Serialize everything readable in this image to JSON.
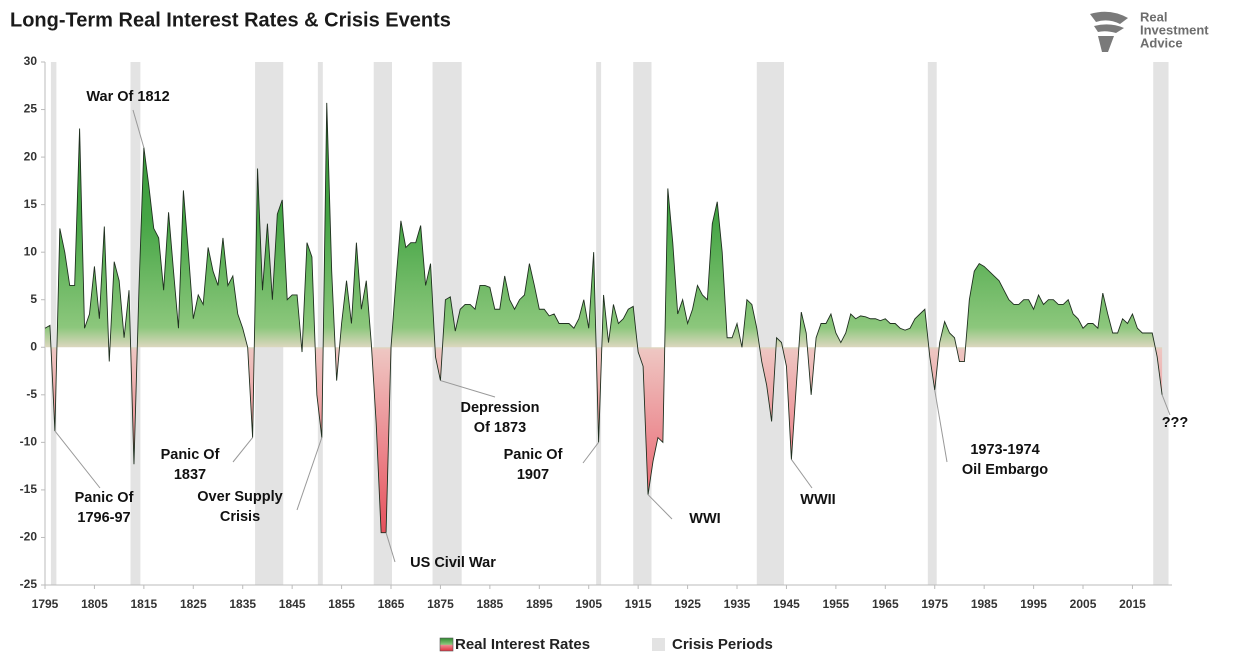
{
  "chart_data": {
    "type": "area",
    "title": "Long-Term Real Interest Rates & Crisis Events",
    "logo": [
      "Real",
      "Investment",
      "Advice"
    ],
    "x": [
      1795,
      1796,
      1797,
      1798,
      1799,
      1800,
      1801,
      1802,
      1803,
      1804,
      1805,
      1806,
      1807,
      1808,
      1809,
      1810,
      1811,
      1812,
      1813,
      1814,
      1815,
      1816,
      1817,
      1818,
      1819,
      1820,
      1821,
      1822,
      1823,
      1824,
      1825,
      1826,
      1827,
      1828,
      1829,
      1830,
      1831,
      1832,
      1833,
      1834,
      1835,
      1836,
      1837,
      1838,
      1839,
      1840,
      1841,
      1842,
      1843,
      1844,
      1845,
      1846,
      1847,
      1848,
      1849,
      1850,
      1851,
      1852,
      1853,
      1854,
      1855,
      1856,
      1857,
      1858,
      1859,
      1860,
      1861,
      1862,
      1863,
      1864,
      1865,
      1866,
      1867,
      1868,
      1869,
      1870,
      1871,
      1872,
      1873,
      1874,
      1875,
      1876,
      1877,
      1878,
      1879,
      1880,
      1881,
      1882,
      1883,
      1884,
      1885,
      1886,
      1887,
      1888,
      1889,
      1890,
      1891,
      1892,
      1893,
      1894,
      1895,
      1896,
      1897,
      1898,
      1899,
      1900,
      1901,
      1902,
      1903,
      1904,
      1905,
      1906,
      1907,
      1908,
      1909,
      1910,
      1911,
      1912,
      1913,
      1914,
      1915,
      1916,
      1917,
      1918,
      1919,
      1920,
      1921,
      1922,
      1923,
      1924,
      1925,
      1926,
      1927,
      1928,
      1929,
      1930,
      1931,
      1932,
      1933,
      1934,
      1935,
      1936,
      1937,
      1938,
      1939,
      1940,
      1941,
      1942,
      1943,
      1944,
      1945,
      1946,
      1947,
      1948,
      1949,
      1950,
      1951,
      1952,
      1953,
      1954,
      1955,
      1956,
      1957,
      1958,
      1959,
      1960,
      1961,
      1962,
      1963,
      1964,
      1965,
      1966,
      1967,
      1968,
      1969,
      1970,
      1971,
      1972,
      1973,
      1974,
      1975,
      1976,
      1977,
      1978,
      1979,
      1980,
      1981,
      1982,
      1983,
      1984,
      1985,
      1986,
      1987,
      1988,
      1989,
      1990,
      1991,
      1992,
      1993,
      1994,
      1995,
      1996,
      1997,
      1998,
      1999,
      2000,
      2001,
      2002,
      2003,
      2004,
      2005,
      2006,
      2007,
      2008,
      2009,
      2010,
      2011,
      2012,
      2013,
      2014,
      2015,
      2016,
      2017,
      2018,
      2019,
      2020,
      2021
    ],
    "series": [
      {
        "name": "Real Interest Rates",
        "color": "#2f8a2f",
        "negative_color": "#e2303e",
        "values": [
          2,
          2.3,
          -8.8,
          12.5,
          10,
          6.5,
          6.5,
          23,
          2,
          3.5,
          8.5,
          3,
          12.7,
          -1.5,
          9,
          7,
          1,
          6,
          -12.3,
          6,
          21,
          17,
          12.5,
          11.5,
          6,
          14.2,
          8,
          2,
          16.5,
          10,
          3,
          5.5,
          4.5,
          10.5,
          8,
          6.5,
          11.5,
          6.5,
          7.5,
          3.5,
          2,
          0,
          -9.5,
          18.8,
          6,
          13,
          5,
          14,
          15.5,
          5,
          5.5,
          5.5,
          -0.5,
          11,
          9.5,
          -5,
          -9.5,
          25.7,
          8,
          -3.5,
          2.5,
          7,
          2.5,
          11,
          4,
          7,
          0.5,
          -8,
          -19.5,
          -19.5,
          0,
          7,
          13.3,
          10.5,
          11,
          11,
          12.8,
          6.5,
          8.8,
          -1,
          -3.5,
          5,
          5.3,
          1.7,
          4,
          4.5,
          4.5,
          4,
          6.5,
          6.5,
          6.3,
          4,
          4,
          7.5,
          5,
          4,
          5,
          5.5,
          8.8,
          6.5,
          4,
          4,
          3.3,
          3.5,
          2.5,
          2.5,
          2.5,
          2,
          3,
          5,
          2,
          10,
          -10,
          5.5,
          0.5,
          4.5,
          2.5,
          3,
          4,
          4.3,
          -0.5,
          -2,
          -15.5,
          -12,
          -9.5,
          -10,
          16.7,
          11,
          3.5,
          5,
          2.5,
          4,
          6.5,
          5.5,
          5,
          13,
          15.3,
          10,
          1,
          1,
          2.5,
          0,
          5,
          4.5,
          2,
          -1.5,
          -4,
          -7.8,
          1,
          0.5,
          -2,
          -11.8,
          -4,
          3.7,
          1.5,
          -5,
          1,
          2.5,
          2.5,
          3.5,
          1.5,
          0.5,
          1.5,
          3.5,
          3,
          3.3,
          3.2,
          3,
          3,
          2.8,
          3,
          2.5,
          2.5,
          2,
          1.8,
          2,
          3,
          3.5,
          4,
          -1,
          -4.5,
          0.5,
          2.7,
          1.5,
          1,
          -1.5,
          -1.5,
          5,
          8,
          8.8,
          8.5,
          8,
          7.5,
          7,
          6,
          5,
          4.5,
          4.5,
          5,
          5,
          4,
          5.5,
          4.5,
          5,
          5,
          4.5,
          4.5,
          5,
          3.5,
          3,
          2,
          2.5,
          2.5,
          2,
          5.7,
          3.5,
          1.5,
          1.5,
          3,
          2.5,
          3.5,
          2,
          1.5,
          1.5,
          1.5,
          -1,
          -5
        ]
      }
    ],
    "crisis": {
      "name": "Crisis Periods",
      "color": "#e3e3e3",
      "periods": [
        [
          1796.2,
          1797.3
        ],
        [
          1812.3,
          1814.3
        ],
        [
          1837.5,
          1843.2
        ],
        [
          1850.2,
          1851.2
        ],
        [
          1861.5,
          1865.2
        ],
        [
          1873.4,
          1879.3
        ],
        [
          1906.5,
          1907.5
        ],
        [
          1914,
          1917.7
        ],
        [
          1939,
          1944.5
        ],
        [
          1973.6,
          1975.4
        ],
        [
          2019.2,
          2022.3
        ]
      ]
    },
    "annotations": [
      {
        "lines": [
          "War Of 1812"
        ],
        "x": 1815
      },
      {
        "lines": [
          "Panic Of",
          "1796-97"
        ],
        "x": 1797
      },
      {
        "lines": [
          "Panic Of",
          "1837"
        ],
        "x": 1837
      },
      {
        "lines": [
          "Over Supply",
          "Crisis"
        ],
        "x": 1851
      },
      {
        "lines": [
          "US Civil War"
        ],
        "x": 1864
      },
      {
        "lines": [
          "Depression",
          "Of 1873"
        ],
        "x": 1875
      },
      {
        "lines": [
          "Panic Of",
          "1907"
        ],
        "x": 1907
      },
      {
        "lines": [
          "WWI"
        ],
        "x": 1917
      },
      {
        "lines": [
          "WWII"
        ],
        "x": 1946
      },
      {
        "lines": [
          "1973-1974",
          "Oil Embargo"
        ],
        "x": 1975
      },
      {
        "lines": [
          "???"
        ],
        "x": 2021
      }
    ],
    "xlim": [
      1795,
      2023
    ],
    "xticks": [
      1795,
      1805,
      1815,
      1825,
      1835,
      1845,
      1855,
      1865,
      1875,
      1885,
      1895,
      1905,
      1915,
      1925,
      1935,
      1945,
      1955,
      1965,
      1975,
      1985,
      1995,
      2005,
      2015
    ],
    "ylim": [
      -25,
      30
    ],
    "yticks": [
      30,
      25,
      20,
      15,
      10,
      5,
      0,
      -5,
      -10,
      -15,
      -20,
      -25
    ],
    "grid": false,
    "legend": "bottom"
  }
}
